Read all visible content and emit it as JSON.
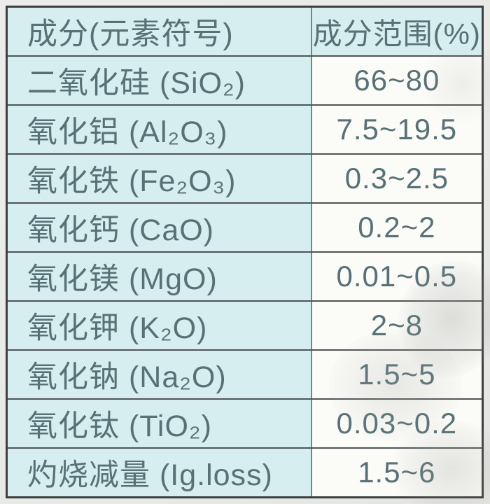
{
  "table": {
    "header": {
      "component": "成分(元素符号)",
      "range": "成分范围(%)"
    },
    "rows": [
      {
        "name": "二氧化硅 (SiO₂)",
        "range": "66~80"
      },
      {
        "name": "氧化铝 (Al₂O₃)",
        "range": "7.5~19.5"
      },
      {
        "name": "氧化铁 (Fe₂O₃)",
        "range": "0.3~2.5"
      },
      {
        "name": "氧化钙 (CaO)",
        "range": "0.2~2"
      },
      {
        "name": "氧化镁 (MgO)",
        "range": "0.01~0.5"
      },
      {
        "name": "氧化钾 (K₂O)",
        "range": "2~8"
      },
      {
        "name": "氧化钠 (Na₂O)",
        "range": "1.5~5"
      },
      {
        "name": "氧化钛 (TiO₂)",
        "range": "0.03~0.2"
      },
      {
        "name": "灼烧减量 (Ig.loss)",
        "range": "1.5~6"
      }
    ],
    "colors": {
      "cell_cyan": "#d6eef0",
      "cell_white": "#fbfbf8",
      "text": "#577176",
      "border_outer": "#3c4042",
      "border_inner": "#505456",
      "page_background": "#e9eae6"
    }
  },
  "chart_data": {
    "type": "table",
    "columns": [
      "成分(元素符号)",
      "成分范围(%)"
    ],
    "rows": [
      [
        "二氧化硅 (SiO₂)",
        "66~80"
      ],
      [
        "氧化铝 (Al₂O₃)",
        "7.5~19.5"
      ],
      [
        "氧化铁 (Fe₂O₃)",
        "0.3~2.5"
      ],
      [
        "氧化钙 (CaO)",
        "0.2~2"
      ],
      [
        "氧化镁 (MgO)",
        "0.01~0.5"
      ],
      [
        "氧化钾 (K₂O)",
        "2~8"
      ],
      [
        "氧化钠 (Na₂O)",
        "1.5~5"
      ],
      [
        "氧化钛 (TiO₂)",
        "0.03~0.2"
      ],
      [
        "灼烧减量 (Ig.loss)",
        "1.5~6"
      ]
    ]
  }
}
